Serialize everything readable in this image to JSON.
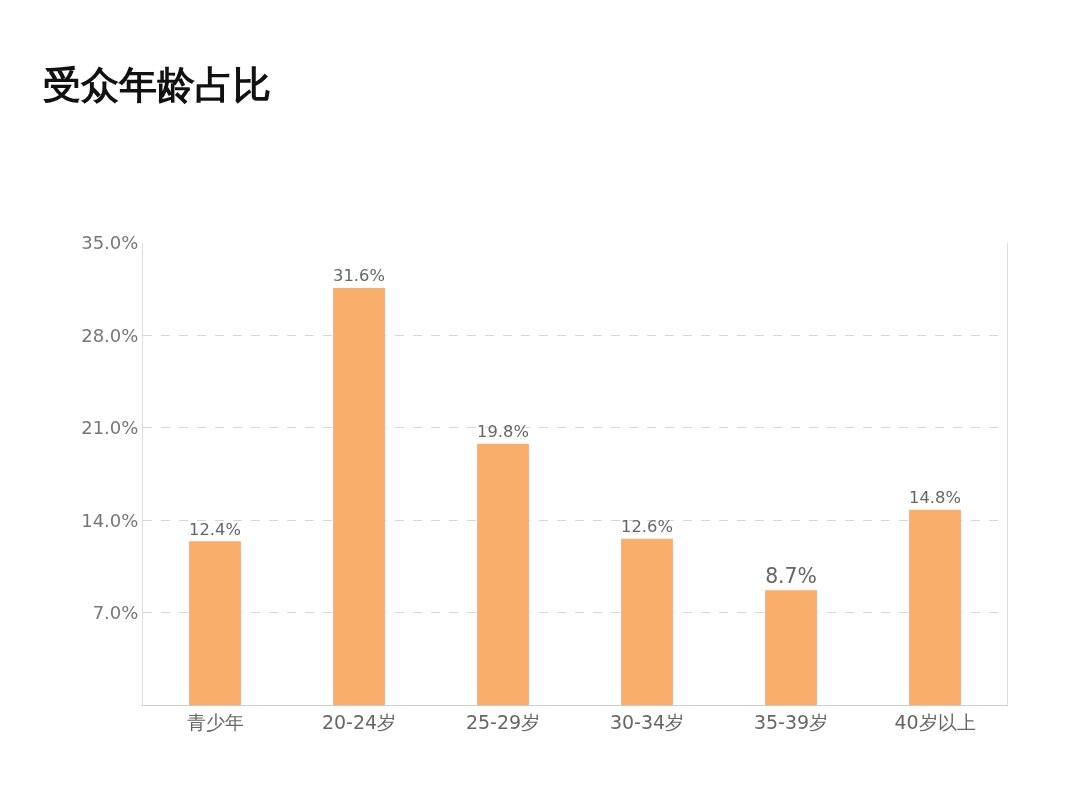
{
  "chart_data": {
    "type": "bar",
    "title": "受众年龄占比",
    "categories": [
      "青少年",
      "20-24岁",
      "25-29岁",
      "30-34岁",
      "35-39岁",
      "40岁以上"
    ],
    "values": [
      12.4,
      31.6,
      19.8,
      12.6,
      8.7,
      14.8
    ],
    "value_labels": [
      "12.4%",
      "31.6%",
      "19.8%",
      "12.6%",
      "8.7%",
      "14.8%"
    ],
    "color": "#f9ae6b",
    "ylim": [
      0,
      35
    ],
    "yticks": [
      {
        "value": 7,
        "label": "7.0%"
      },
      {
        "value": 14,
        "label": "14.0%"
      },
      {
        "value": 21,
        "label": "21.0%"
      },
      {
        "value": 28,
        "label": "28.0%"
      },
      {
        "value": 35,
        "label": "35.0%"
      }
    ],
    "grid": "y"
  }
}
